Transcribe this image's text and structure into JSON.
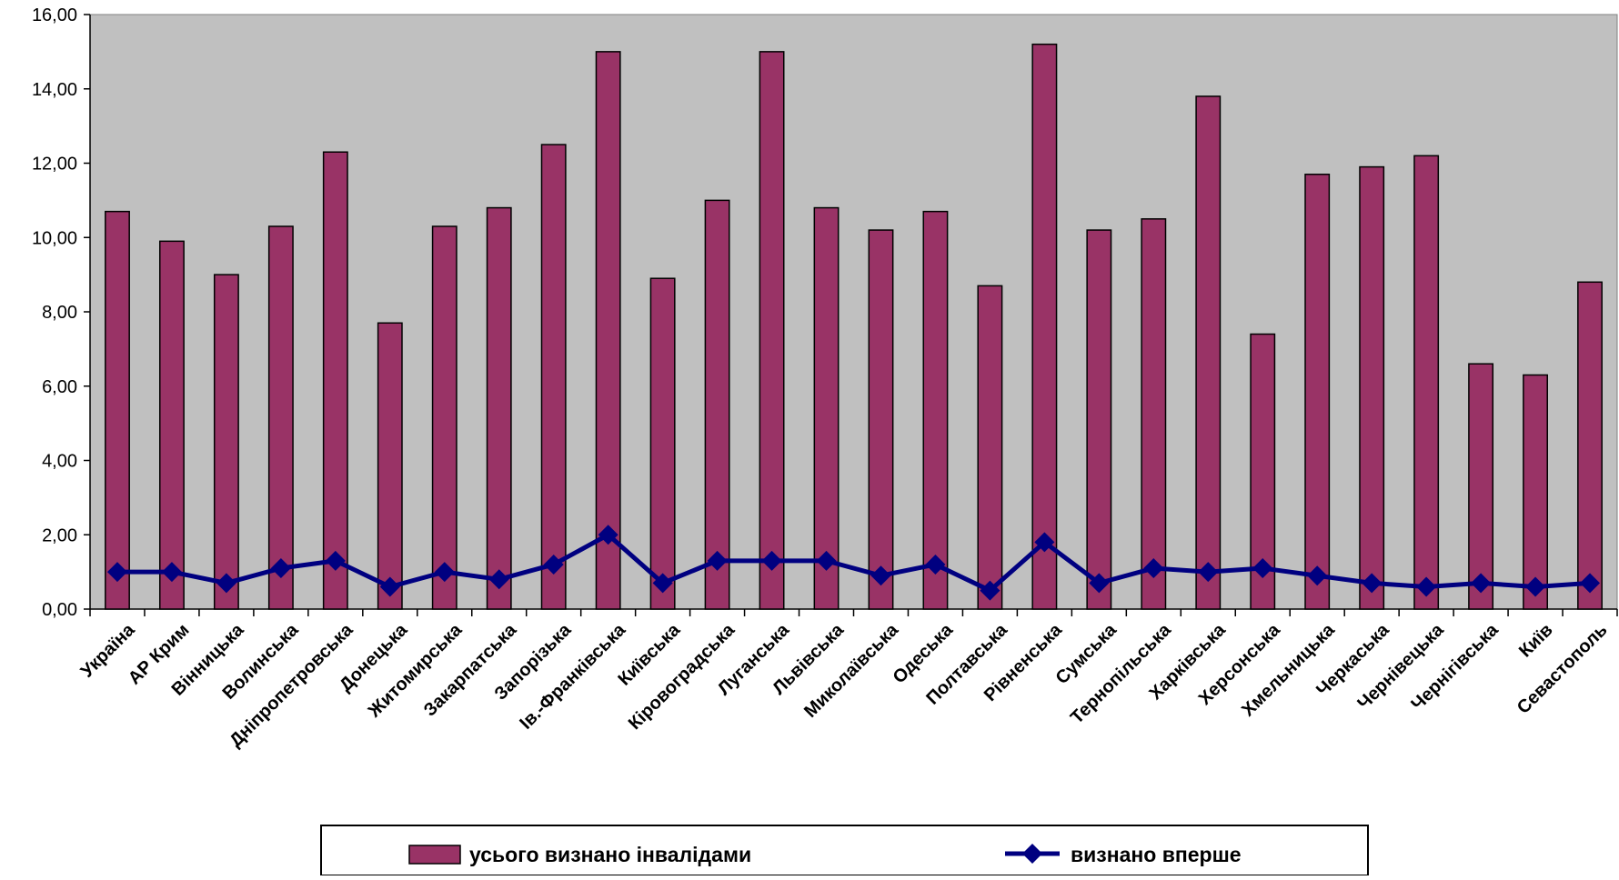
{
  "chart_data": {
    "type": "bar",
    "categories": [
      "Україна",
      "АР Крим",
      "Вінницька",
      "Волинська",
      "Дніпропетровська",
      "Донецька",
      "Житомирська",
      "Закарпатська",
      "Запорізька",
      "Ів.-Франківська",
      "Київська",
      "Кіровоградська",
      "Луганська",
      "Львівська",
      "Миколаївська",
      "Одеська",
      "Полтавська",
      "Рівненська",
      "Сумська",
      "Тернопільська",
      "Харківська",
      "Херсонська",
      "Хмельницька",
      "Черкаська",
      "Чернівецька",
      "Чернігівська",
      "Київ",
      "Севастополь"
    ],
    "ylim": [
      0,
      16
    ],
    "y_ticks": [
      "0,00",
      "2,00",
      "4,00",
      "6,00",
      "8,00",
      "10,00",
      "12,00",
      "14,00",
      "16,00"
    ],
    "grid": false,
    "legend_position": "bottom",
    "series": [
      {
        "name": "усього визнано інвалідами",
        "type": "bar",
        "color": "#993366",
        "values": [
          10.7,
          9.9,
          9.0,
          10.3,
          12.3,
          7.7,
          10.3,
          10.8,
          12.5,
          15.0,
          8.9,
          11.0,
          15.0,
          10.8,
          10.2,
          10.7,
          8.7,
          15.2,
          10.2,
          10.5,
          13.8,
          7.4,
          11.7,
          11.9,
          12.2,
          6.6,
          6.3,
          8.8
        ]
      },
      {
        "name": "визнано вперше",
        "type": "line",
        "marker": "diamond",
        "color": "#000080",
        "values": [
          1.0,
          1.0,
          0.7,
          1.1,
          1.3,
          0.6,
          1.0,
          0.8,
          1.2,
          2.0,
          0.7,
          1.3,
          1.3,
          1.3,
          0.9,
          1.2,
          0.5,
          1.8,
          0.7,
          1.1,
          1.0,
          1.1,
          0.9,
          0.7,
          0.6,
          0.7,
          0.6,
          0.7
        ]
      }
    ],
    "colors": {
      "plot_background": "#C0C0C0",
      "axis": "#000000"
    }
  }
}
